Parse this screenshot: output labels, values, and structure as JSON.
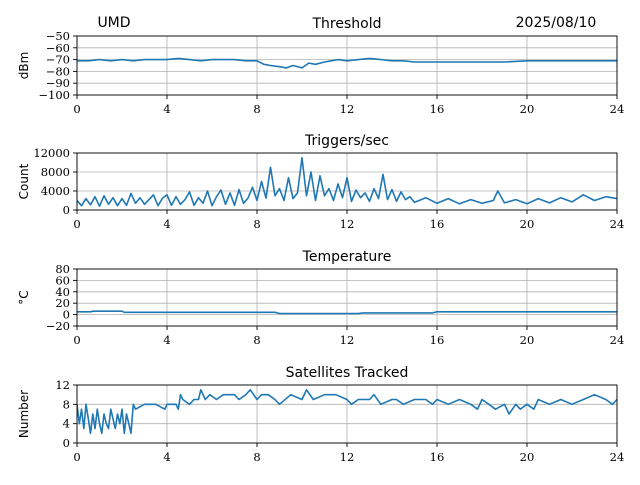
{
  "header": {
    "station": "UMD",
    "date": "2025/08/10"
  },
  "colors": {
    "series": "#1f77b4",
    "grid": "#b0b0b0",
    "axis": "#000000"
  },
  "chart_data": [
    {
      "id": "threshold",
      "type": "line",
      "title": "Threshold",
      "xlabel": "",
      "ylabel": "dBm",
      "xlim": [
        0,
        24
      ],
      "ylim": [
        -100,
        -50
      ],
      "xticks": [
        0,
        4,
        8,
        12,
        16,
        20,
        24
      ],
      "yticks": [
        -100,
        -90,
        -80,
        -70,
        -60,
        -50
      ],
      "ytick_labels": [
        "−100",
        "−90",
        "−80",
        "−70",
        "−60",
        "−50"
      ],
      "grid": true,
      "series": [
        {
          "x": [
            0,
            0.5,
            1,
            1.5,
            2,
            2.5,
            3,
            3.5,
            4,
            4.5,
            5,
            5.5,
            6,
            6.5,
            7,
            7.5,
            8,
            8.3,
            8.6,
            9,
            9.3,
            9.6,
            10,
            10.3,
            10.6,
            11,
            11.3,
            11.6,
            12,
            12.5,
            13,
            13.5,
            14,
            14.5,
            15,
            16,
            17,
            18,
            19,
            20,
            21,
            22,
            23,
            24
          ],
          "y": [
            -71,
            -71,
            -70,
            -71,
            -70,
            -71,
            -70,
            -70,
            -70,
            -69,
            -70,
            -71,
            -70,
            -70,
            -70,
            -71,
            -71,
            -74,
            -75,
            -76,
            -77,
            -75,
            -77,
            -73,
            -74,
            -72,
            -71,
            -70,
            -71,
            -70,
            -69,
            -70,
            -71,
            -71,
            -72,
            -72,
            -72,
            -72,
            -72,
            -71,
            -71,
            -71,
            -71,
            -71
          ]
        }
      ]
    },
    {
      "id": "triggers",
      "type": "line",
      "title": "Triggers/sec",
      "xlabel": "",
      "ylabel": "Count",
      "xlim": [
        0,
        24
      ],
      "ylim": [
        0,
        12000
      ],
      "xticks": [
        0,
        4,
        8,
        12,
        16,
        20,
        24
      ],
      "yticks": [
        0,
        4000,
        8000,
        12000
      ],
      "ytick_labels": [
        "0",
        "4000",
        "8000",
        "12000"
      ],
      "grid": true,
      "series": [
        {
          "x": [
            0,
            0.2,
            0.4,
            0.6,
            0.8,
            1.0,
            1.2,
            1.4,
            1.6,
            1.8,
            2.0,
            2.2,
            2.4,
            2.6,
            2.8,
            3.0,
            3.2,
            3.4,
            3.6,
            3.8,
            4.0,
            4.2,
            4.4,
            4.6,
            4.8,
            5.0,
            5.2,
            5.4,
            5.6,
            5.8,
            6.0,
            6.2,
            6.4,
            6.6,
            6.8,
            7.0,
            7.2,
            7.4,
            7.6,
            7.8,
            8.0,
            8.2,
            8.4,
            8.6,
            8.8,
            9.0,
            9.2,
            9.4,
            9.6,
            9.8,
            10.0,
            10.2,
            10.4,
            10.6,
            10.8,
            11.0,
            11.2,
            11.4,
            11.6,
            11.8,
            12.0,
            12.2,
            12.4,
            12.6,
            12.8,
            13.0,
            13.2,
            13.4,
            13.6,
            13.8,
            14.0,
            14.2,
            14.4,
            14.6,
            14.8,
            15.0,
            15.5,
            16.0,
            16.5,
            17.0,
            17.5,
            18.0,
            18.5,
            18.7,
            19.0,
            19.5,
            20.0,
            20.5,
            21.0,
            21.5,
            22.0,
            22.5,
            23.0,
            23.5,
            24.0
          ],
          "y": [
            2000,
            900,
            2400,
            1100,
            2800,
            800,
            3000,
            1200,
            2600,
            900,
            2400,
            1000,
            3500,
            1400,
            2600,
            1200,
            2200,
            3200,
            900,
            2500,
            3200,
            1000,
            2800,
            1200,
            2200,
            3800,
            1000,
            2600,
            1400,
            4000,
            900,
            2800,
            4200,
            1200,
            3600,
            1000,
            4300,
            1400,
            2500,
            4800,
            2000,
            6000,
            2500,
            9000,
            3000,
            4500,
            2000,
            6800,
            2400,
            3600,
            11000,
            3000,
            8000,
            2000,
            7200,
            3000,
            4500,
            2000,
            5500,
            2600,
            6800,
            1800,
            4200,
            2600,
            3600,
            1800,
            4500,
            2400,
            7500,
            2200,
            4300,
            1800,
            3800,
            2200,
            2800,
            1600,
            2600,
            1400,
            2400,
            1300,
            2200,
            1400,
            2000,
            4000,
            1500,
            2200,
            1300,
            2400,
            1500,
            2600,
            1700,
            3200,
            2000,
            2800,
            2400
          ]
        }
      ]
    },
    {
      "id": "temperature",
      "type": "line",
      "title": "Temperature",
      "xlabel": "",
      "ylabel": "°C",
      "xlim": [
        0,
        24
      ],
      "ylim": [
        -20,
        80
      ],
      "xticks": [
        0,
        4,
        8,
        12,
        16,
        20,
        24
      ],
      "yticks": [
        -20,
        0,
        20,
        40,
        60,
        80
      ],
      "ytick_labels": [
        "−20",
        "0",
        "20",
        "40",
        "60",
        "80"
      ],
      "grid": true,
      "series": [
        {
          "x": [
            0,
            0.6,
            0.7,
            2.0,
            2.1,
            8.8,
            9.0,
            12.5,
            12.7,
            15.8,
            16.0,
            24
          ],
          "y": [
            5,
            5,
            6,
            6,
            4,
            4,
            2,
            2,
            3,
            3,
            5,
            5
          ]
        }
      ]
    },
    {
      "id": "satellites",
      "type": "line",
      "title": "Satellites Tracked",
      "xlabel": "",
      "ylabel": "Number",
      "xlim": [
        0,
        24
      ],
      "ylim": [
        0,
        12
      ],
      "xticks": [
        0,
        4,
        8,
        12,
        16,
        20,
        24
      ],
      "yticks": [
        0,
        4,
        8,
        12
      ],
      "ytick_labels": [
        "0",
        "4",
        "8",
        "12"
      ],
      "grid": true,
      "series": [
        {
          "x": [
            0,
            0.1,
            0.2,
            0.3,
            0.4,
            0.5,
            0.6,
            0.7,
            0.8,
            0.9,
            1.0,
            1.1,
            1.2,
            1.3,
            1.4,
            1.5,
            1.6,
            1.7,
            1.8,
            1.9,
            2.0,
            2.1,
            2.2,
            2.3,
            2.4,
            2.5,
            2.6,
            3.0,
            3.5,
            3.9,
            4.0,
            4.4,
            4.5,
            4.6,
            4.7,
            5.0,
            5.2,
            5.4,
            5.5,
            5.7,
            5.9,
            6.2,
            6.5,
            7.0,
            7.2,
            7.5,
            7.7,
            8.0,
            8.2,
            8.5,
            8.8,
            9.0,
            9.5,
            10.0,
            10.2,
            10.5,
            11.0,
            11.5,
            12.0,
            12.2,
            12.5,
            13.0,
            13.2,
            13.5,
            14.0,
            14.2,
            14.5,
            15.0,
            15.5,
            15.8,
            16.0,
            16.5,
            17.0,
            17.5,
            17.8,
            18.0,
            18.3,
            18.6,
            19.0,
            19.2,
            19.5,
            19.7,
            20.0,
            20.3,
            20.5,
            21.0,
            21.5,
            22.0,
            22.5,
            23.0,
            23.5,
            23.8,
            24.0
          ],
          "y": [
            8,
            4,
            7,
            3,
            8,
            5,
            2,
            6,
            3,
            7,
            4,
            2,
            6,
            4,
            3,
            7,
            5,
            3,
            6,
            4,
            7,
            2,
            6,
            4,
            2,
            8,
            7,
            8,
            8,
            7,
            8,
            8,
            7,
            10,
            9,
            8,
            9,
            9,
            11,
            9,
            10,
            9,
            10,
            10,
            9,
            10,
            11,
            9,
            10,
            10,
            9,
            8,
            10,
            9,
            11,
            9,
            10,
            10,
            9,
            8,
            9,
            9,
            10,
            8,
            9,
            9,
            8,
            9,
            9,
            8,
            9,
            8,
            9,
            8,
            7,
            9,
            8,
            7,
            8,
            6,
            8,
            7,
            8,
            7,
            9,
            8,
            9,
            8,
            9,
            10,
            9,
            8,
            9
          ]
        }
      ]
    }
  ]
}
